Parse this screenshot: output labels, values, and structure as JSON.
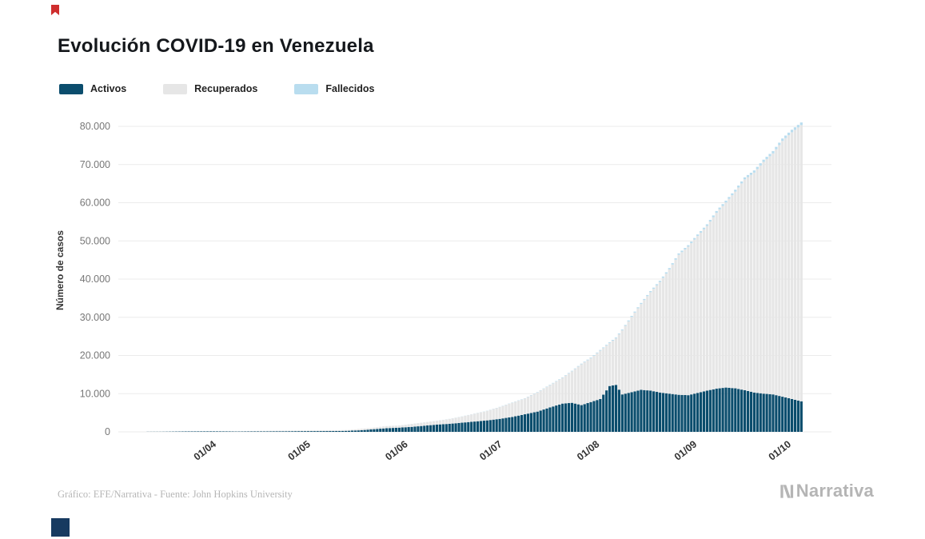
{
  "footer": {
    "note": "Gráfico: EFE/Narrativa - Fuente: John Hopkins University",
    "brand": "Narrativa"
  },
  "decor": {
    "top_left_mark_color": "#cf2e2e",
    "bottom_left_square_color": "#173a60",
    "brand_color": "#b5b5b5",
    "grid_color": "#ebebeb"
  },
  "chart_data": {
    "type": "area",
    "stacked": true,
    "title": "Evolución COVID-19 en Venezuela",
    "ylabel": "Número de casos",
    "xlabel": "",
    "ylim": [
      0,
      80000
    ],
    "grid": true,
    "legend_position": "top-left",
    "axis_start": "2020-03-05",
    "axis_end": "2020-10-18",
    "y_ticks": [
      {
        "value": 0,
        "label": "0"
      },
      {
        "value": 10000,
        "label": "10.000"
      },
      {
        "value": 20000,
        "label": "20.000"
      },
      {
        "value": 30000,
        "label": "30.000"
      },
      {
        "value": 40000,
        "label": "40.000"
      },
      {
        "value": 50000,
        "label": "50.000"
      },
      {
        "value": 60000,
        "label": "60.000"
      },
      {
        "value": 70000,
        "label": "70.000"
      },
      {
        "value": 80000,
        "label": "80.000"
      }
    ],
    "x_ticks": [
      {
        "label": "01/04",
        "date": "2020-04-01"
      },
      {
        "label": "01/05",
        "date": "2020-05-01"
      },
      {
        "label": "01/06",
        "date": "2020-06-01"
      },
      {
        "label": "01/07",
        "date": "2020-07-01"
      },
      {
        "label": "01/08",
        "date": "2020-08-01"
      },
      {
        "label": "01/09",
        "date": "2020-09-01"
      },
      {
        "label": "01/10",
        "date": "2020-10-01"
      }
    ],
    "dates": [
      "2020-03-14",
      "2020-03-18",
      "2020-03-22",
      "2020-03-26",
      "2020-03-30",
      "2020-04-03",
      "2020-04-07",
      "2020-04-11",
      "2020-04-15",
      "2020-04-19",
      "2020-04-23",
      "2020-04-27",
      "2020-05-01",
      "2020-05-05",
      "2020-05-09",
      "2020-05-13",
      "2020-05-17",
      "2020-05-21",
      "2020-05-25",
      "2020-05-29",
      "2020-06-02",
      "2020-06-06",
      "2020-06-10",
      "2020-06-14",
      "2020-06-18",
      "2020-06-22",
      "2020-06-26",
      "2020-06-30",
      "2020-07-04",
      "2020-07-08",
      "2020-07-12",
      "2020-07-16",
      "2020-07-20",
      "2020-07-24",
      "2020-07-27",
      "2020-07-30",
      "2020-08-02",
      "2020-08-05",
      "2020-08-08",
      "2020-08-10",
      "2020-08-12",
      "2020-08-15",
      "2020-08-18",
      "2020-08-21",
      "2020-08-24",
      "2020-08-27",
      "2020-08-30",
      "2020-09-02",
      "2020-09-05",
      "2020-09-08",
      "2020-09-11",
      "2020-09-14",
      "2020-09-17",
      "2020-09-20",
      "2020-09-23",
      "2020-09-26",
      "2020-09-29",
      "2020-10-02",
      "2020-10-05",
      "2020-10-08"
    ],
    "series": [
      {
        "name": "Activos",
        "color": "#0b4d6d",
        "values": [
          30,
          36,
          70,
          107,
          119,
          130,
          115,
          90,
          100,
          110,
          150,
          160,
          180,
          190,
          200,
          210,
          280,
          420,
          700,
          950,
          1100,
          1300,
          1600,
          1900,
          2100,
          2400,
          2700,
          3000,
          3400,
          3900,
          4600,
          5300,
          6400,
          7400,
          7600,
          7000,
          7800,
          8600,
          12000,
          12300,
          9800,
          10400,
          11000,
          10800,
          10300,
          10000,
          9700,
          9600,
          10200,
          10800,
          11300,
          11600,
          11400,
          10900,
          10300,
          10000,
          9800,
          9200,
          8600,
          8000
        ]
      },
      {
        "name": "Recuperados",
        "color": "#e6e6e6",
        "values": [
          0,
          0,
          0,
          0,
          13,
          16,
          41,
          76,
          95,
          137,
          138,
          155,
          155,
          161,
          178,
          202,
          214,
          394,
          411,
          549,
          545,
          767,
          851,
          977,
          1256,
          1613,
          2038,
          2479,
          3075,
          3722,
          4120,
          5030,
          5819,
          6732,
          8244,
          10704,
          11475,
          12651,
          11262,
          12190,
          16771,
          19714,
          22475,
          25763,
          28935,
          32543,
          36647,
          38885,
          41077,
          43112,
          46063,
          48453,
          51508,
          55215,
          57587,
          60683,
          63114,
          66980,
          69855,
          72339
        ]
      },
      {
        "name": "Fallecidos",
        "color": "#b9ddef",
        "values": [
          0,
          0,
          0,
          1,
          3,
          7,
          9,
          9,
          9,
          9,
          10,
          10,
          10,
          10,
          10,
          10,
          10,
          10,
          10,
          11,
          17,
          20,
          22,
          27,
          30,
          35,
          41,
          51,
          62,
          71,
          83,
          98,
          115,
          131,
          144,
          155,
          168,
          187,
          203,
          210,
          229,
          255,
          280,
          305,
          329,
          355,
          381,
          398,
          414,
          438,
          460,
          487,
          508,
          541,
          566,
          590,
          614,
          640,
          662,
          680
        ]
      }
    ]
  }
}
